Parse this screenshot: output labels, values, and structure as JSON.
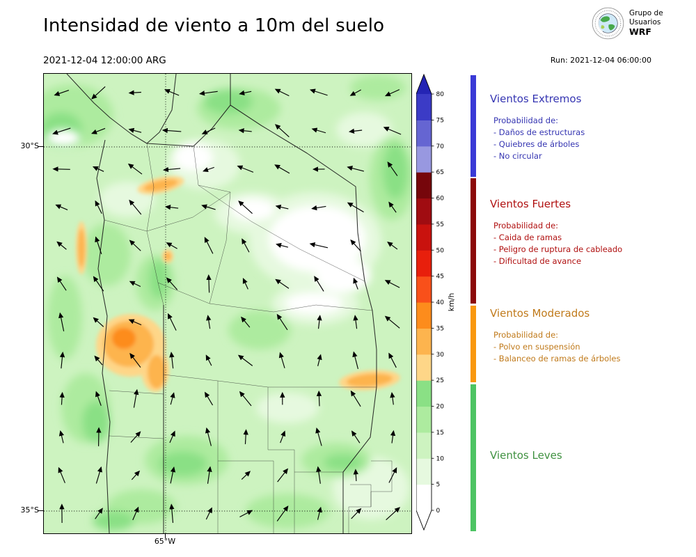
{
  "header": {
    "title": "Intensidad de viento a 10m del suelo",
    "valid_time": "2021-12-04 12:00:00 ARG",
    "run_label": "Run: 2021-12-04 06:00:00",
    "logo": {
      "line1": "Grupo de",
      "line2": "Usuarios",
      "line3": "WRF"
    }
  },
  "map": {
    "y_ticks": [
      "30°S",
      "35°S"
    ],
    "x_ticks": [
      "65°W"
    ]
  },
  "colorbar": {
    "label": "km/h",
    "ticks": [
      0,
      5,
      10,
      15,
      20,
      25,
      30,
      35,
      40,
      45,
      50,
      55,
      60,
      65,
      70,
      75,
      80
    ],
    "colors": [
      "#ffffff",
      "#e6f9df",
      "#cdf3c0",
      "#adeb9f",
      "#8ae085",
      "#fed688",
      "#fdb44e",
      "#fd8c1c",
      "#f9501a",
      "#e81f0c",
      "#c9120e",
      "#a00c11",
      "#76060b",
      "#9898e0",
      "#6565d2",
      "#3b3bc6"
    ],
    "over_color": "#2424b4",
    "under_color": "#ffffff"
  },
  "legend": {
    "categories": [
      {
        "name": "Vientos Extremos",
        "text_color": "#3535b2",
        "bar_color": "#3a3ad6",
        "prob_label": "Probabilidad de:",
        "items": [
          "- Daños de estructuras",
          "- Quiebres de árboles",
          "- No circular"
        ]
      },
      {
        "name": "Vientos Fuertes",
        "text_color": "#b01010",
        "bar_color": "#8c0a0a",
        "prob_label": "Probabilidad de:",
        "items": [
          "- Caida de ramas",
          "- Peligro de ruptura de cableado",
          "- Dificultad de avance"
        ]
      },
      {
        "name": "Vientos Moderados",
        "text_color": "#c07a1b",
        "bar_color": "#f9980f",
        "prob_label": "Probabilidad de:",
        "items": [
          "- Polvo en suspensión",
          "- Balanceo de ramas de árboles"
        ]
      },
      {
        "name": "Vientos Leves",
        "text_color": "#3f9140",
        "bar_color": "#4dc463",
        "prob_label": "",
        "items": []
      }
    ]
  },
  "chart_data": {
    "type": "heatmap",
    "title": "Intensidad de viento a 10m del suelo",
    "valid_time": "2021-12-04 12:00:00 ARG",
    "model_run": "Run: 2021-12-04 06:00:00",
    "units": "km/h",
    "x_ticks": [
      "65°W"
    ],
    "y_ticks": [
      "30°S",
      "35°S"
    ],
    "colorbar_levels": [
      0,
      5,
      10,
      15,
      20,
      25,
      30,
      35,
      40,
      45,
      50,
      55,
      60,
      65,
      70,
      75,
      80
    ],
    "colorbar_extend": "both",
    "categories": [
      {
        "name": "Vientos Leves",
        "range_kmh": [
          0,
          25
        ],
        "color": "#4dc463"
      },
      {
        "name": "Vientos Moderados",
        "range_kmh": [
          25,
          40
        ],
        "color": "#f9980f"
      },
      {
        "name": "Vientos Fuertes",
        "range_kmh": [
          40,
          65
        ],
        "color": "#8c0a0a"
      },
      {
        "name": "Vientos Extremos",
        "range_kmh": [
          65,
          null
        ],
        "color": "#3a3ad6"
      }
    ],
    "quiver": {
      "rows": 12,
      "cols": 10,
      "description": "10 m wind direction arrows over the mapped domain"
    },
    "field_summary": "Mapped 10 m wind speed over central Argentina (Córdoba region, ~29.5–35.5°S around 65°W): mostly light 5–25 km/h winds (greens), calm <5 km/h pockets in the centre-east (white), and moderate 25–40 km/h patches (orange) over the western sierras, the north-west edge and a short south-eastern streak."
  }
}
